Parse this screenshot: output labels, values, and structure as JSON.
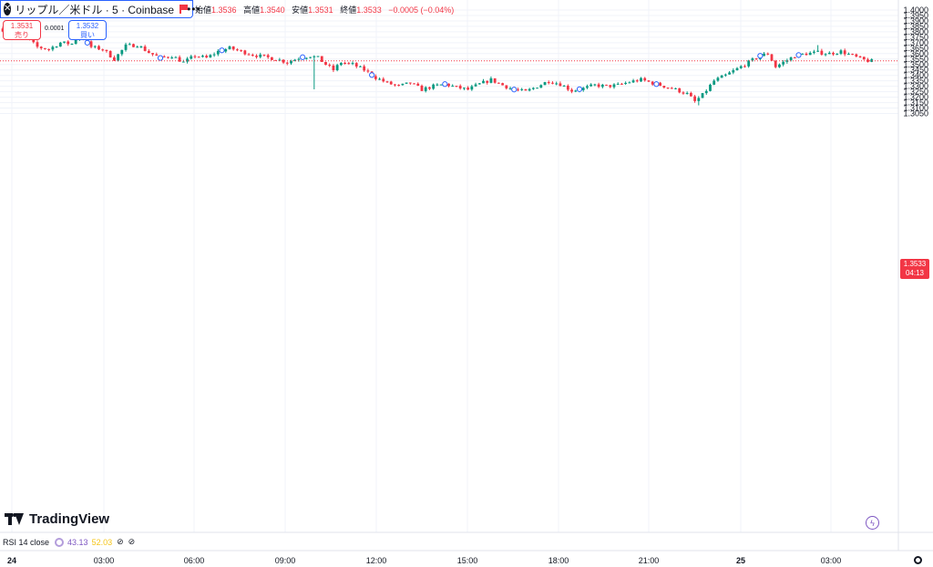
{
  "header": {
    "symbol": "リップル／米ドル · 5 · Coinbase",
    "ohlc": [
      {
        "label": "始値",
        "value": "1.3536"
      },
      {
        "label": "高値",
        "value": "1.3540"
      },
      {
        "label": "安値",
        "value": "1.3531"
      },
      {
        "label": "終値",
        "value": "1.3533"
      }
    ],
    "change": "−0.0005 (−0.04%)"
  },
  "trade": {
    "sell_price": "1.3531",
    "sell_label": "売り",
    "spread": "0.0001",
    "buy_price": "1.3532",
    "buy_label": "買い"
  },
  "price_tag": {
    "price": "1.3533",
    "countdown": "04:13"
  },
  "branding": {
    "logo_text": "TradingView"
  },
  "rsi": {
    "label": "RSI 14 close",
    "value_a": "43.13",
    "value_b": "52.03"
  },
  "colors": {
    "up": "#089981",
    "down": "#f23645",
    "accent": "#2962ff",
    "grid": "#f0f3fa"
  },
  "chart_data": {
    "type": "candlestick",
    "y_ticks": [
      "1.4000",
      "1.3950",
      "1.3900",
      "1.3850",
      "1.3800",
      "1.3750",
      "1.3700",
      "1.3650",
      "1.3600",
      "1.3550",
      "1.3500",
      "1.3450",
      "1.3400",
      "1.3350",
      "1.3300",
      "1.3250",
      "1.3200",
      "1.3150",
      "1.3100",
      "1.3050"
    ],
    "ylim": [
      1.303,
      1.4013
    ],
    "x_ticks": [
      "24",
      "03:00",
      "06:00",
      "09:00",
      "12:00",
      "15:00",
      "18:00",
      "21:00",
      "25",
      "03:00"
    ],
    "last_price": 1.3533,
    "close_path": [
      [
        0,
        1.382
      ],
      [
        3,
        1.384
      ],
      [
        6,
        1.375
      ],
      [
        9,
        1.366
      ],
      [
        12,
        1.364
      ],
      [
        15,
        1.37
      ],
      [
        18,
        1.369
      ],
      [
        20,
        1.378
      ],
      [
        23,
        1.366
      ],
      [
        26,
        1.364
      ],
      [
        29,
        1.355
      ],
      [
        32,
        1.367
      ],
      [
        35,
        1.368
      ],
      [
        38,
        1.361
      ],
      [
        41,
        1.356
      ],
      [
        44,
        1.358
      ],
      [
        47,
        1.352
      ],
      [
        50,
        1.358
      ],
      [
        53,
        1.356
      ],
      [
        56,
        1.362
      ],
      [
        59,
        1.365
      ],
      [
        62,
        1.362
      ],
      [
        65,
        1.359
      ],
      [
        68,
        1.357
      ],
      [
        71,
        1.355
      ],
      [
        74,
        1.352
      ],
      [
        77,
        1.356
      ],
      [
        80,
        1.358
      ],
      [
        82,
        1.356
      ],
      [
        84,
        1.35
      ],
      [
        86,
        1.345
      ],
      [
        88,
        1.352
      ],
      [
        91,
        1.35
      ],
      [
        94,
        1.345
      ],
      [
        97,
        1.338
      ],
      [
        100,
        1.333
      ],
      [
        103,
        1.33
      ],
      [
        106,
        1.333
      ],
      [
        109,
        1.327
      ],
      [
        112,
        1.33
      ],
      [
        115,
        1.332
      ],
      [
        118,
        1.329
      ],
      [
        121,
        1.327
      ],
      [
        124,
        1.332
      ],
      [
        127,
        1.336
      ],
      [
        130,
        1.331
      ],
      [
        133,
        1.327
      ],
      [
        136,
        1.325
      ],
      [
        139,
        1.33
      ],
      [
        142,
        1.335
      ],
      [
        145,
        1.332
      ],
      [
        148,
        1.326
      ],
      [
        151,
        1.328
      ],
      [
        154,
        1.331
      ],
      [
        157,
        1.33
      ],
      [
        160,
        1.331
      ],
      [
        163,
        1.334
      ],
      [
        166,
        1.336
      ],
      [
        169,
        1.333
      ],
      [
        172,
        1.33
      ],
      [
        175,
        1.327
      ],
      [
        178,
        1.323
      ],
      [
        180,
        1.316
      ],
      [
        182,
        1.322
      ],
      [
        185,
        1.335
      ],
      [
        188,
        1.34
      ],
      [
        191,
        1.346
      ],
      [
        194,
        1.352
      ],
      [
        197,
        1.358
      ],
      [
        199,
        1.36
      ],
      [
        201,
        1.348
      ],
      [
        203,
        1.352
      ],
      [
        206,
        1.358
      ],
      [
        209,
        1.36
      ],
      [
        212,
        1.361
      ],
      [
        215,
        1.36
      ],
      [
        218,
        1.362
      ],
      [
        221,
        1.358
      ],
      [
        224,
        1.354
      ],
      [
        226,
        1.353
      ]
    ],
    "wick_extremes": [
      {
        "i": 1,
        "high": 1.3905
      },
      {
        "i": 81,
        "low": 1.3272
      },
      {
        "i": 181,
        "low": 1.3125
      },
      {
        "i": 212,
        "high": 1.3678
      }
    ],
    "event_markers": [
      4,
      22,
      41,
      57,
      78,
      96,
      115,
      133,
      150,
      170,
      197,
      207
    ]
  }
}
